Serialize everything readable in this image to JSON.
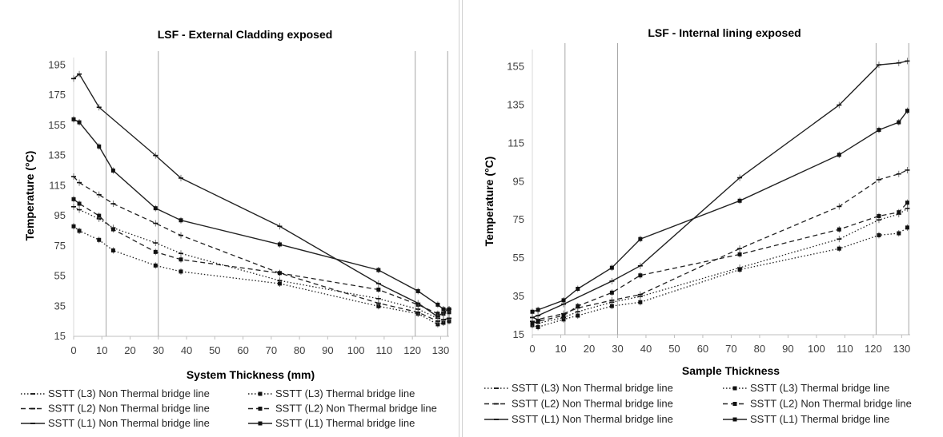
{
  "chart_data": [
    {
      "type": "line",
      "title": "LSF - External Cladding exposed",
      "xlabel": "System Thickness (mm)",
      "ylabel": "Temperature (°C)",
      "xlim": [
        0,
        133
      ],
      "ylim": [
        15,
        200
      ],
      "xticks": [
        0,
        10,
        20,
        30,
        40,
        50,
        60,
        70,
        80,
        90,
        100,
        110,
        120,
        130
      ],
      "yticks": [
        15,
        35,
        55,
        75,
        95,
        115,
        135,
        155,
        175,
        195
      ],
      "vlines": [
        11.5,
        30,
        121,
        132.5
      ],
      "grid": false,
      "legend_position": "bottom",
      "series": [
        {
          "name": "SSTT (L3) Non Thermal bridge line",
          "dash": "dotted",
          "marker": "dash",
          "x": [
            0,
            2,
            9,
            14,
            29,
            38,
            73,
            108,
            122,
            129,
            131,
            133
          ],
          "y": [
            101,
            99,
            93,
            87,
            77,
            70,
            52,
            40,
            33,
            27,
            26,
            27
          ]
        },
        {
          "name": "SSTT (L3) Thermal bridge line",
          "dash": "dotted",
          "marker": "square",
          "x": [
            0,
            2,
            9,
            14,
            29,
            38,
            73,
            108,
            122,
            129,
            131,
            133
          ],
          "y": [
            88,
            85,
            79,
            72,
            62,
            58,
            50,
            35,
            30,
            23,
            24,
            25
          ]
        },
        {
          "name": "SSTT (L2) Non Thermal bridge line",
          "dash": "dashed",
          "marker": "dash",
          "x": [
            0,
            2,
            9,
            14,
            29,
            38,
            73,
            108,
            122,
            129,
            131,
            133
          ],
          "y": [
            121,
            117,
            109,
            103,
            90,
            82,
            57,
            37,
            31,
            25,
            26,
            27
          ]
        },
        {
          "name": "SSTT (L2) Non Thermal bridge line",
          "dash": "dashed",
          "marker": "square",
          "x": [
            0,
            2,
            9,
            14,
            29,
            38,
            73,
            108,
            122,
            129,
            131,
            133
          ],
          "y": [
            106,
            103,
            95,
            86,
            71,
            66,
            57,
            46,
            36,
            30,
            30,
            31
          ]
        },
        {
          "name": "SSTT (L1) Non Thermal bridge line",
          "dash": "solid",
          "marker": "dash",
          "x": [
            0,
            2,
            9,
            29,
            38,
            73,
            108,
            122,
            129,
            131,
            133
          ],
          "y": [
            186,
            189,
            167,
            135,
            120,
            88,
            50,
            37,
            28,
            31,
            33
          ]
        },
        {
          "name": "SSTT (L1)  Thermal bridge line",
          "dash": "solid",
          "marker": "square",
          "x": [
            0,
            2,
            9,
            14,
            29,
            38,
            73,
            108,
            122,
            129,
            131,
            133
          ],
          "y": [
            159,
            157,
            141,
            125,
            100,
            92,
            76,
            59,
            45,
            36,
            33,
            33
          ]
        }
      ]
    },
    {
      "type": "line",
      "title": "LSF - Internal lining exposed",
      "xlabel": "Sample Thickness",
      "ylabel": "Temperature (°C)",
      "xlim": [
        0,
        133
      ],
      "ylim": [
        15,
        164
      ],
      "xticks": [
        0,
        10,
        20,
        30,
        40,
        50,
        60,
        70,
        80,
        90,
        100,
        110,
        120,
        130
      ],
      "yticks": [
        15,
        35,
        55,
        75,
        95,
        115,
        135,
        155
      ],
      "vlines": [
        11.5,
        30,
        121,
        132.5
      ],
      "grid": false,
      "legend_position": "bottom",
      "series": [
        {
          "name": "SSTT (L3) Non Thermal bridge line",
          "dash": "dotted",
          "marker": "dash",
          "x": [
            0,
            2,
            11,
            16,
            28,
            38,
            73,
            108,
            122,
            129,
            132
          ],
          "y": [
            22,
            21,
            24,
            27,
            32,
            35,
            50,
            65,
            75,
            78,
            81
          ]
        },
        {
          "name": "SSTT (L3) Thermal bridge line",
          "dash": "dotted",
          "marker": "square",
          "x": [
            0,
            2,
            11,
            16,
            28,
            38,
            73,
            108,
            122,
            129,
            132
          ],
          "y": [
            20,
            19,
            23,
            25,
            30,
            32,
            49,
            60,
            67,
            68,
            71
          ]
        },
        {
          "name": "SSTT (L2) Non Thermal bridge line",
          "dash": "dashed",
          "marker": "dash",
          "x": [
            0,
            2,
            11,
            16,
            28,
            38,
            73,
            108,
            122,
            129,
            132
          ],
          "y": [
            24,
            23,
            26,
            29,
            33,
            36,
            60,
            82,
            96,
            99,
            101
          ]
        },
        {
          "name": "SSTT (L2) Non Thermal bridge line",
          "dash": "dashed",
          "marker": "square",
          "x": [
            0,
            2,
            11,
            16,
            28,
            38,
            73,
            108,
            122,
            129,
            132
          ],
          "y": [
            21,
            22,
            25,
            30,
            37,
            46,
            57,
            70,
            77,
            79,
            84
          ]
        },
        {
          "name": "SSTT (L1) Non Thermal bridge line",
          "dash": "solid",
          "marker": "dash",
          "x": [
            0,
            2,
            11,
            28,
            38,
            73,
            108,
            122,
            129,
            132
          ],
          "y": [
            24,
            25,
            31,
            43,
            51,
            97,
            135,
            156,
            157,
            158
          ]
        },
        {
          "name": "SSTT (L1) Thermal bridge line",
          "dash": "solid",
          "marker": "square",
          "x": [
            0,
            2,
            11,
            16,
            28,
            38,
            73,
            108,
            122,
            129,
            132
          ],
          "y": [
            27,
            28,
            33,
            39,
            50,
            65,
            85,
            109,
            122,
            126,
            132
          ]
        }
      ]
    }
  ]
}
